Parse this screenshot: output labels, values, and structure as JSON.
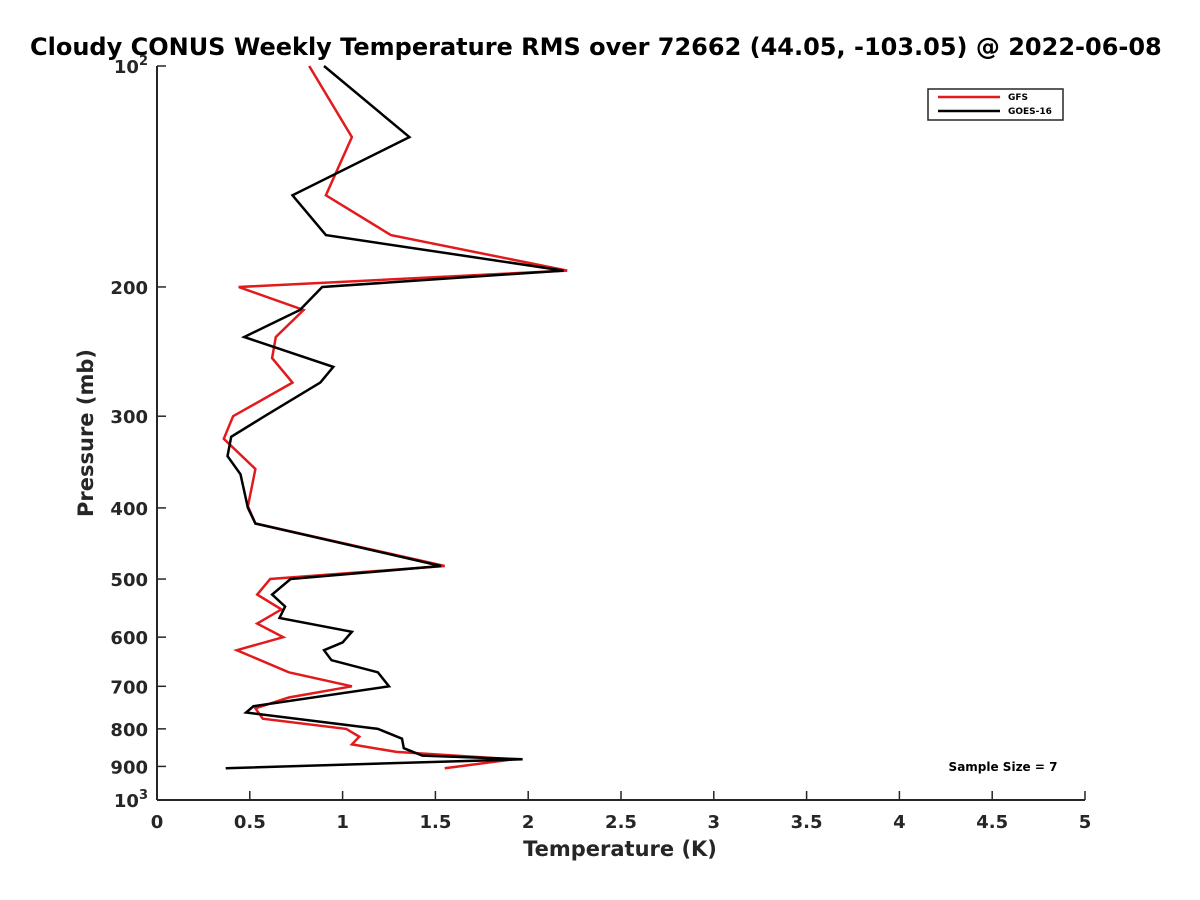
{
  "chart_data": {
    "type": "line",
    "title": "Cloudy CONUS Weekly Temperature RMS over 72662 (44.05, -103.05) @ 2022-06-08",
    "xlabel": "Temperature (K)",
    "ylabel": "Pressure (mb)",
    "xlim": [
      0,
      5
    ],
    "ylim": [
      1000,
      100
    ],
    "y_scale": "log",
    "y_reversed": true,
    "grid": false,
    "legend_position": "top-right",
    "x_ticks": [
      "0",
      "0.5",
      "1",
      "1.5",
      "2",
      "2.5",
      "3",
      "3.5",
      "4",
      "4.5",
      "5"
    ],
    "y_ticks": [
      {
        "value": 100,
        "base": "10",
        "exp": "2"
      },
      {
        "value": 200,
        "label": "200"
      },
      {
        "value": 300,
        "label": "300"
      },
      {
        "value": 400,
        "label": "400"
      },
      {
        "value": 500,
        "label": "500"
      },
      {
        "value": 600,
        "label": "600"
      },
      {
        "value": 700,
        "label": "700"
      },
      {
        "value": 800,
        "label": "800"
      },
      {
        "value": 900,
        "label": "900"
      },
      {
        "value": 1000,
        "base": "10",
        "exp": "3"
      }
    ],
    "series": [
      {
        "name": "GFS",
        "color": "#e31a1c",
        "points": [
          {
            "x": 0.82,
            "y": 100
          },
          {
            "x": 1.05,
            "y": 125
          },
          {
            "x": 0.91,
            "y": 150
          },
          {
            "x": 1.26,
            "y": 170
          },
          {
            "x": 2.21,
            "y": 190
          },
          {
            "x": 0.44,
            "y": 200
          },
          {
            "x": 0.79,
            "y": 215
          },
          {
            "x": 0.64,
            "y": 234
          },
          {
            "x": 0.62,
            "y": 250
          },
          {
            "x": 0.73,
            "y": 270
          },
          {
            "x": 0.41,
            "y": 300
          },
          {
            "x": 0.36,
            "y": 322
          },
          {
            "x": 0.53,
            "y": 354
          },
          {
            "x": 0.49,
            "y": 398
          },
          {
            "x": 0.53,
            "y": 420
          },
          {
            "x": 1.55,
            "y": 480
          },
          {
            "x": 0.61,
            "y": 500
          },
          {
            "x": 0.54,
            "y": 525
          },
          {
            "x": 0.67,
            "y": 550
          },
          {
            "x": 0.54,
            "y": 575
          },
          {
            "x": 0.68,
            "y": 600
          },
          {
            "x": 0.43,
            "y": 625
          },
          {
            "x": 0.71,
            "y": 670
          },
          {
            "x": 1.05,
            "y": 700
          },
          {
            "x": 0.71,
            "y": 725
          },
          {
            "x": 0.53,
            "y": 750
          },
          {
            "x": 0.57,
            "y": 775
          },
          {
            "x": 1.02,
            "y": 800
          },
          {
            "x": 1.09,
            "y": 820
          },
          {
            "x": 1.05,
            "y": 840
          },
          {
            "x": 1.29,
            "y": 860
          },
          {
            "x": 1.92,
            "y": 880
          },
          {
            "x": 1.55,
            "y": 905
          }
        ]
      },
      {
        "name": "GOES-16",
        "color": "#000000",
        "points": [
          {
            "x": 0.9,
            "y": 100
          },
          {
            "x": 1.36,
            "y": 125
          },
          {
            "x": 0.73,
            "y": 150
          },
          {
            "x": 0.91,
            "y": 170
          },
          {
            "x": 2.19,
            "y": 190
          },
          {
            "x": 0.89,
            "y": 200
          },
          {
            "x": 0.77,
            "y": 215
          },
          {
            "x": 0.47,
            "y": 234
          },
          {
            "x": 0.95,
            "y": 257
          },
          {
            "x": 0.88,
            "y": 270
          },
          {
            "x": 0.58,
            "y": 300
          },
          {
            "x": 0.4,
            "y": 320
          },
          {
            "x": 0.38,
            "y": 340
          },
          {
            "x": 0.45,
            "y": 360
          },
          {
            "x": 0.49,
            "y": 400
          },
          {
            "x": 0.53,
            "y": 420
          },
          {
            "x": 1.53,
            "y": 480
          },
          {
            "x": 0.72,
            "y": 500
          },
          {
            "x": 0.62,
            "y": 525
          },
          {
            "x": 0.69,
            "y": 545
          },
          {
            "x": 0.66,
            "y": 565
          },
          {
            "x": 1.05,
            "y": 590
          },
          {
            "x": 1.0,
            "y": 610
          },
          {
            "x": 0.9,
            "y": 625
          },
          {
            "x": 0.94,
            "y": 645
          },
          {
            "x": 1.19,
            "y": 670
          },
          {
            "x": 1.25,
            "y": 700
          },
          {
            "x": 0.52,
            "y": 745
          },
          {
            "x": 0.48,
            "y": 760
          },
          {
            "x": 1.19,
            "y": 800
          },
          {
            "x": 1.32,
            "y": 825
          },
          {
            "x": 1.33,
            "y": 850
          },
          {
            "x": 1.43,
            "y": 870
          },
          {
            "x": 1.97,
            "y": 880
          },
          {
            "x": 0.37,
            "y": 905
          }
        ]
      }
    ],
    "annotation": "Sample Size = 7"
  }
}
